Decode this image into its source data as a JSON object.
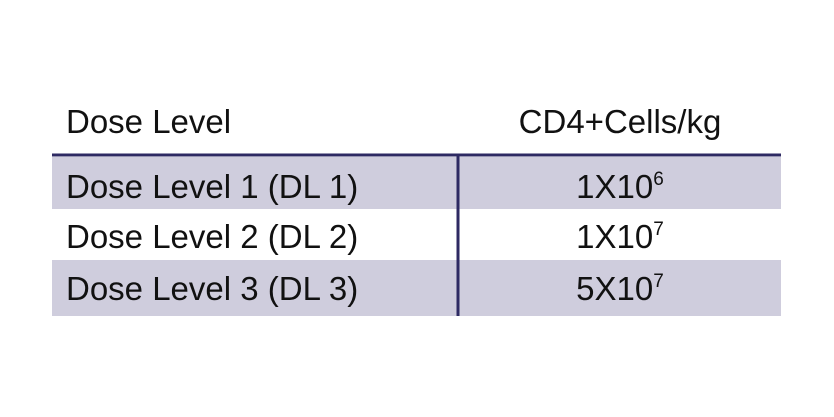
{
  "table": {
    "header": [
      "Dose Level",
      "CD4+Cells/kg"
    ],
    "rows": [
      [
        "Dose Level 1 (DL 1)",
        {
          "base": "1X10",
          "exponent": "6"
        }
      ],
      [
        "Dose Level 2 (DL 2)",
        {
          "base": "1X10",
          "exponent": "7"
        }
      ],
      [
        "Dose Level 3 (DL 3)",
        {
          "base": "5X10",
          "exponent": "7"
        }
      ]
    ]
  }
}
